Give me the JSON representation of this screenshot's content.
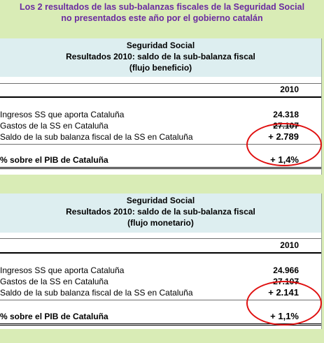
{
  "headline": {
    "line1": "Los 2 resultados de las sub-balanzas fiscales de la Seguridad Social",
    "line2": "no presentados este año por el gobierno catalán"
  },
  "colors": {
    "background": "#d9ecb6",
    "headline": "#6a2aa0",
    "panel_header": "#ddeef0",
    "annotation_circle": "#e01010"
  },
  "panels": [
    {
      "title": "Seguridad Social",
      "subtitle": "Resultados 2010: saldo de la sub-balanza fiscal",
      "flow": "(flujo beneficio)",
      "year": "2010",
      "rows": [
        {
          "label": "Ingresos SS que aporta Cataluña",
          "value": "24.318"
        },
        {
          "label": "Gastos de la SS en Cataluña",
          "value": "27.107"
        },
        {
          "label": "Saldo de la sub balanza fiscal de la SS en Cataluña",
          "value": "+ 2.789"
        }
      ],
      "pib_label": "% sobre el PIB de Cataluña",
      "pib_value": "+ 1,4%"
    },
    {
      "title": "Seguridad Social",
      "subtitle": "Resultados 2010: saldo de la sub-balanza fiscal",
      "flow": "(flujo monetario)",
      "year": "2010",
      "rows": [
        {
          "label": "Ingresos SS que aporta Cataluña",
          "value": "24.966"
        },
        {
          "label": "Gastos de la SS en Cataluña",
          "value": "27.107"
        },
        {
          "label": "Saldo de la sub balanza fiscal de la SS en Cataluña",
          "value": "+ 2.141"
        }
      ],
      "pib_label": "% sobre el PIB de Cataluña",
      "pib_value": "+ 1,1%"
    }
  ]
}
